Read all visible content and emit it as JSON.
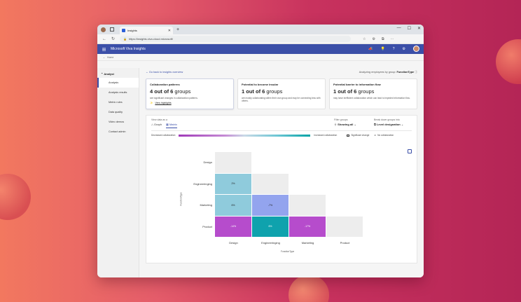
{
  "browser": {
    "tab_title": "Insights",
    "new_tab": "+",
    "url": "https://insights.viva.cloud.microsoft/",
    "window_controls": [
      "—",
      "☐",
      "✕"
    ]
  },
  "app": {
    "title": "Microsoft Viva Insights",
    "header_icons": [
      "megaphone-icon",
      "lightbulb-icon",
      "help-icon",
      "gear-icon"
    ]
  },
  "breadcrumb": "Home",
  "sidebar": {
    "group": "Analyst",
    "items": [
      {
        "label": "Analysis",
        "active": true
      },
      {
        "label": "Analysis results",
        "active": false
      },
      {
        "label": "Metric rules",
        "active": false
      },
      {
        "label": "Data quality",
        "active": false
      },
      {
        "label": "Video demos",
        "active": false
      },
      {
        "label": "Contact admin",
        "active": false
      }
    ]
  },
  "main": {
    "back_link": "Go back to insights overview",
    "analyzing_prefix": "Analyzing employees by group:",
    "analyzing_group": "FunctionType",
    "cards": [
      {
        "title": "Collaboration patterns",
        "stat_bold": "4 out of 6",
        "stat_rest": " groups",
        "desc": "see significant changes in collaboration patterns.",
        "link": "View highlights"
      },
      {
        "title": "Potential to become insular",
        "stat_bold": "1 out of 6",
        "stat_rest": " groups",
        "desc": "are mostly collaborating within their own group and may be connecting less with others."
      },
      {
        "title": "Potential barrier to information flow",
        "stat_bold": "1 out of 6",
        "stat_rest": " groups",
        "desc": "may have inefficient collaboration which can lead to impeded information flow."
      }
    ],
    "view_label": "View data as a",
    "view_tabs": [
      {
        "label": "Graph",
        "active": false
      },
      {
        "label": "Matrix",
        "active": true
      }
    ],
    "filter_groups_label": "Filter groups",
    "filter_groups_value": "Showing all",
    "breakdown_label": "Break down groups into",
    "breakdown_value": "Level designation",
    "legend": {
      "decreased": "Decreased collaboration",
      "increased": "Increased collaboration",
      "significant": "Significant change",
      "no_collab": "No collaboration"
    }
  },
  "matrix": {
    "rows": [
      "Design",
      "Engineeringing",
      "Marketing",
      "Product"
    ],
    "columns": [
      "Design",
      "Engineeringing",
      "Marketing",
      "Product"
    ],
    "x_axis_label": "FunctionType",
    "y_axis_label": "FunctionType",
    "cells": [
      {
        "row": 0,
        "col": 0,
        "value": "",
        "color": "#ededed"
      },
      {
        "row": 1,
        "col": 0,
        "value": "2%",
        "color": "#8fcbdc"
      },
      {
        "row": 1,
        "col": 1,
        "value": "",
        "color": "#ededed"
      },
      {
        "row": 2,
        "col": 0,
        "value": "6%",
        "color": "#8fcbdc"
      },
      {
        "row": 2,
        "col": 1,
        "value": "-7%",
        "color": "#93a4ee"
      },
      {
        "row": 2,
        "col": 2,
        "value": "",
        "color": "#ededed"
      },
      {
        "row": 3,
        "col": 0,
        "value": "-14%",
        "color": "#b64ccc"
      },
      {
        "row": 3,
        "col": 1,
        "value": "6%",
        "color": "#0fa2ad"
      },
      {
        "row": 3,
        "col": 2,
        "value": "-17%",
        "color": "#b64ccc"
      },
      {
        "row": 3,
        "col": 3,
        "value": "",
        "color": "#ededed"
      }
    ]
  }
}
